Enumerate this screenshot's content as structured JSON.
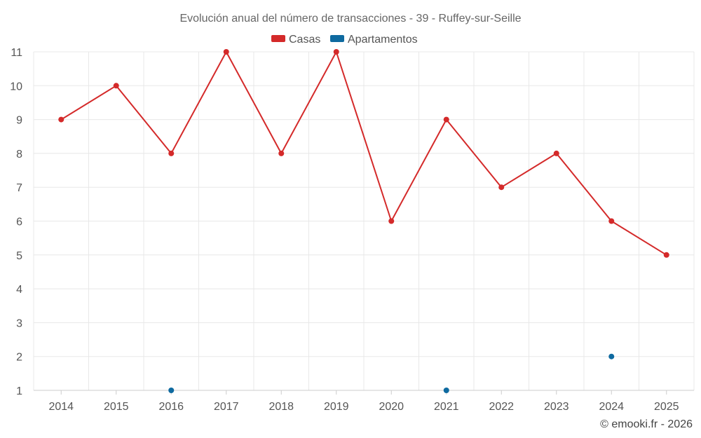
{
  "chart_data": {
    "type": "line",
    "title": "Evolución anual del número de transacciones - 39 - Ruffey-sur-Seille",
    "categories": [
      "2014",
      "2015",
      "2016",
      "2017",
      "2018",
      "2019",
      "2020",
      "2021",
      "2022",
      "2023",
      "2024",
      "2025"
    ],
    "series": [
      {
        "name": "Casas",
        "color": "#d42a2a",
        "line": true,
        "values": [
          9,
          10,
          8,
          11,
          8,
          11,
          6,
          9,
          7,
          8,
          6,
          5
        ]
      },
      {
        "name": "Apartamentos",
        "color": "#0e6aa0",
        "line": false,
        "values": [
          null,
          null,
          1,
          null,
          null,
          null,
          null,
          1,
          null,
          null,
          2,
          null
        ]
      }
    ],
    "yticks": [
      1,
      2,
      3,
      4,
      5,
      6,
      7,
      8,
      9,
      10,
      11
    ],
    "ylim": [
      1,
      11
    ],
    "grid": true,
    "legend_position": "top-center",
    "xlabel": "",
    "ylabel": ""
  },
  "footer": {
    "credit": "© emooki.fr - 2026"
  }
}
